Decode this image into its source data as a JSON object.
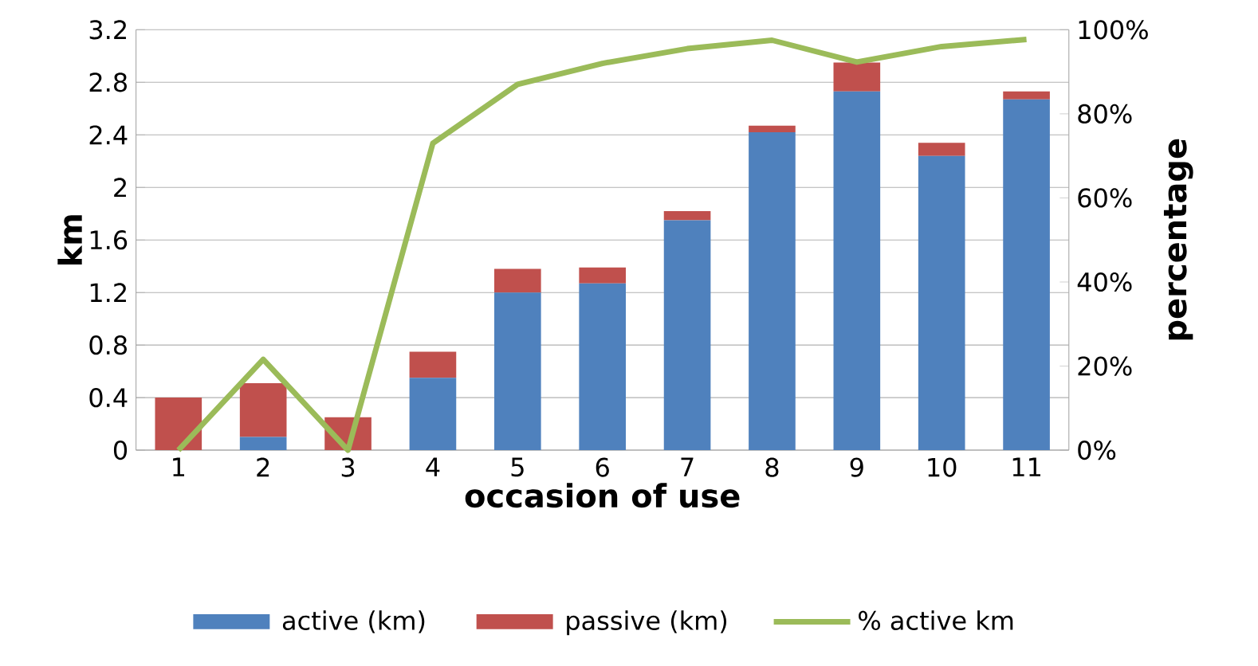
{
  "chart_data": {
    "type": "bar",
    "stacked": true,
    "xlabel": "occasion of use",
    "ylabel": "km",
    "y2label": "percentage",
    "categories": [
      "1",
      "2",
      "3",
      "4",
      "5",
      "6",
      "7",
      "8",
      "9",
      "10",
      "11"
    ],
    "series": [
      {
        "name": "active (km)",
        "color": "#4f81bd",
        "values": [
          0,
          0.1,
          0,
          0.55,
          1.2,
          1.27,
          1.75,
          2.42,
          2.73,
          2.24,
          2.67
        ]
      },
      {
        "name": "passive (km)",
        "color": "#c0504d",
        "values": [
          0.4,
          0.41,
          0.25,
          0.2,
          0.18,
          0.12,
          0.07,
          0.05,
          0.22,
          0.1,
          0.06
        ]
      },
      {
        "name": "% active km",
        "type": "line",
        "axis": "y2",
        "color": "#9bbb59",
        "values": [
          0,
          21.6,
          0,
          73,
          87,
          92,
          95.5,
          97.5,
          92.3,
          96,
          97.7
        ]
      }
    ],
    "ylim": [
      0,
      3.2
    ],
    "yticks": [
      0,
      0.4,
      0.8,
      1.2,
      1.6,
      2,
      2.4,
      2.8,
      3.2
    ],
    "y2lim": [
      0,
      100
    ],
    "y2ticks": [
      {
        "value": 0,
        "label": "0%"
      },
      {
        "value": 20,
        "label": "20%"
      },
      {
        "value": 40,
        "label": "40%"
      },
      {
        "value": 60,
        "label": "60%"
      },
      {
        "value": 80,
        "label": "80%"
      },
      {
        "value": 100,
        "label": "100%"
      }
    ],
    "grid": "y",
    "legend": "bottom"
  }
}
